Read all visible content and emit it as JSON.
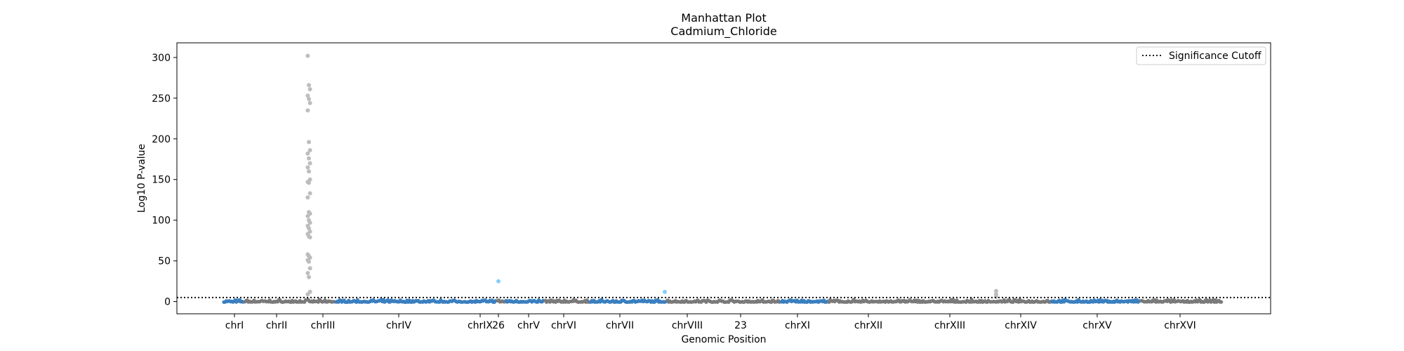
{
  "chart_data": {
    "type": "scatter",
    "title": "Manhattan Plot",
    "subtitle": "Cadmium_Chloride",
    "xlabel": "Genomic Position",
    "ylabel": "Log10 P-value",
    "ylim": [
      -15,
      318
    ],
    "yticks": [
      0,
      50,
      100,
      150,
      200,
      250,
      300
    ],
    "grid": false,
    "legend": {
      "placement": "top-right",
      "entries": [
        "Significance Cutoff"
      ]
    },
    "significance_cutoff": 5,
    "colors": {
      "alt_a": "#3a7fbf",
      "alt_b": "#7a7a7a",
      "highlight_light_gray": "#bdbdbd",
      "highlight_light_blue": "#87cefa",
      "cutoff_line": "#000000"
    },
    "chromosomes": [
      {
        "label": "chrI",
        "color": "alt_a"
      },
      {
        "label": "chrII",
        "color": "alt_b"
      },
      {
        "label": "chrIII",
        "color": "alt_b"
      },
      {
        "label": "chrIV",
        "color": "alt_a"
      },
      {
        "label": "chrIX",
        "color": "alt_a"
      },
      {
        "label": "26",
        "color": "alt_b"
      },
      {
        "label": "chrV",
        "color": "alt_a"
      },
      {
        "label": "chrVI",
        "color": "alt_b"
      },
      {
        "label": "chrVII",
        "color": "alt_a"
      },
      {
        "label": "chrVIII",
        "color": "alt_b"
      },
      {
        "label": "23",
        "color": "alt_b"
      },
      {
        "label": "chrXI",
        "color": "alt_a"
      },
      {
        "label": "chrXII",
        "color": "alt_b"
      },
      {
        "label": "chrXIII",
        "color": "alt_b"
      },
      {
        "label": "chrXIV",
        "color": "alt_b"
      },
      {
        "label": "chrXV",
        "color": "alt_a"
      },
      {
        "label": "chrXVI",
        "color": "alt_b"
      }
    ],
    "significant_points": [
      {
        "chromosome": "chrIII",
        "color": "highlight_light_gray",
        "values": [
          302,
          266,
          261,
          253,
          249,
          244,
          235,
          196,
          186,
          182,
          176,
          170,
          165,
          160,
          150,
          147,
          146,
          133,
          128,
          110,
          108,
          105,
          100,
          97,
          93,
          90,
          86,
          83,
          80,
          79,
          58,
          56,
          54,
          51,
          49,
          41,
          35,
          30,
          12,
          9
        ]
      },
      {
        "chromosome": "26",
        "color": "highlight_light_blue",
        "values": [
          25
        ]
      },
      {
        "chromosome": "chrVIII",
        "color": "highlight_light_blue",
        "values": [
          12
        ]
      },
      {
        "chromosome": "chrXIV",
        "color": "highlight_light_gray",
        "values": [
          13,
          9,
          6
        ]
      }
    ]
  }
}
